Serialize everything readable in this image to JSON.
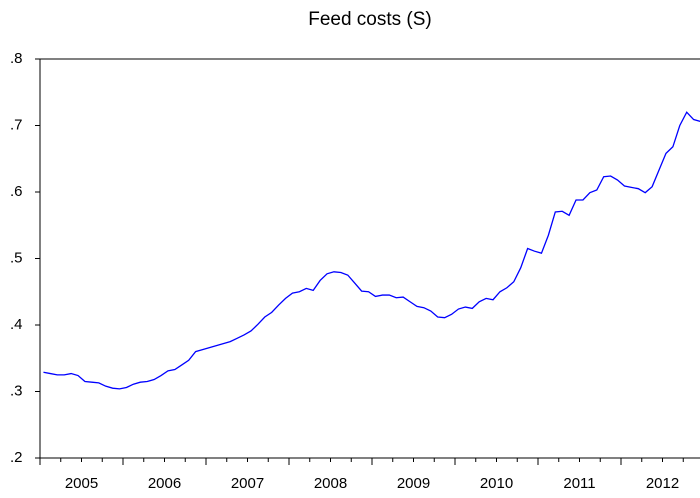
{
  "chart_data": {
    "type": "line",
    "title": "Feed costs (S)",
    "categories": [
      null,
      null,
      null,
      null,
      null,
      null,
      "2005",
      null,
      null,
      null,
      null,
      null,
      null,
      null,
      null,
      null,
      null,
      null,
      "2006",
      null,
      null,
      null,
      null,
      null,
      null,
      null,
      null,
      null,
      null,
      null,
      "2007",
      null,
      null,
      null,
      null,
      null,
      null,
      null,
      null,
      null,
      null,
      null,
      "2008",
      null,
      null,
      null,
      null,
      null,
      null,
      null,
      null,
      null,
      null,
      null,
      "2009",
      null,
      null,
      null,
      null,
      null,
      null,
      null,
      null,
      null,
      null,
      null,
      "2010",
      null,
      null,
      null,
      null,
      null,
      null,
      null,
      null,
      null,
      null,
      null,
      "2011",
      null,
      null,
      null,
      null,
      null,
      null,
      null,
      null,
      null,
      null,
      null,
      "2012",
      null,
      null,
      null,
      null,
      null
    ],
    "series": [
      {
        "color": "#0000ff",
        "values": [
          0.329,
          0.327,
          0.325,
          0.325,
          0.327,
          0.324,
          0.315,
          0.314,
          0.313,
          0.308,
          0.305,
          0.304,
          0.306,
          0.311,
          0.314,
          0.315,
          0.318,
          0.324,
          0.331,
          0.333,
          0.34,
          0.347,
          0.36,
          0.363,
          0.366,
          0.369,
          0.372,
          0.375,
          0.38,
          0.385,
          0.391,
          0.401,
          0.412,
          0.419,
          0.43,
          0.44,
          0.448,
          0.45,
          0.455,
          0.452,
          0.467,
          0.477,
          0.48,
          0.479,
          0.475,
          0.463,
          0.451,
          0.45,
          0.443,
          0.445,
          0.445,
          0.441,
          0.442,
          0.435,
          0.428,
          0.426,
          0.421,
          0.412,
          0.411,
          0.416,
          0.424,
          0.427,
          0.425,
          0.435,
          0.44,
          0.438,
          0.45,
          0.456,
          0.465,
          0.486,
          0.515,
          0.511,
          0.508,
          0.535,
          0.57,
          0.571,
          0.565,
          0.588,
          0.588,
          0.599,
          0.603,
          0.623,
          0.624,
          0.618,
          0.609,
          0.607,
          0.605,
          0.599,
          0.608,
          0.633,
          0.658,
          0.668,
          0.7,
          0.72,
          0.709,
          0.706
        ]
      }
    ],
    "ylim": [
      0.2,
      0.8
    ],
    "yticks": [
      {
        "value": 0.2,
        "label": ".2"
      },
      {
        "value": 0.3,
        "label": ".3"
      },
      {
        "value": 0.4,
        "label": ".4"
      },
      {
        "value": 0.5,
        "label": ".5"
      },
      {
        "value": 0.6,
        "label": ".6"
      },
      {
        "value": 0.7,
        "label": ".7"
      },
      {
        "value": 0.8,
        "label": ".8"
      }
    ],
    "grid": false
  }
}
